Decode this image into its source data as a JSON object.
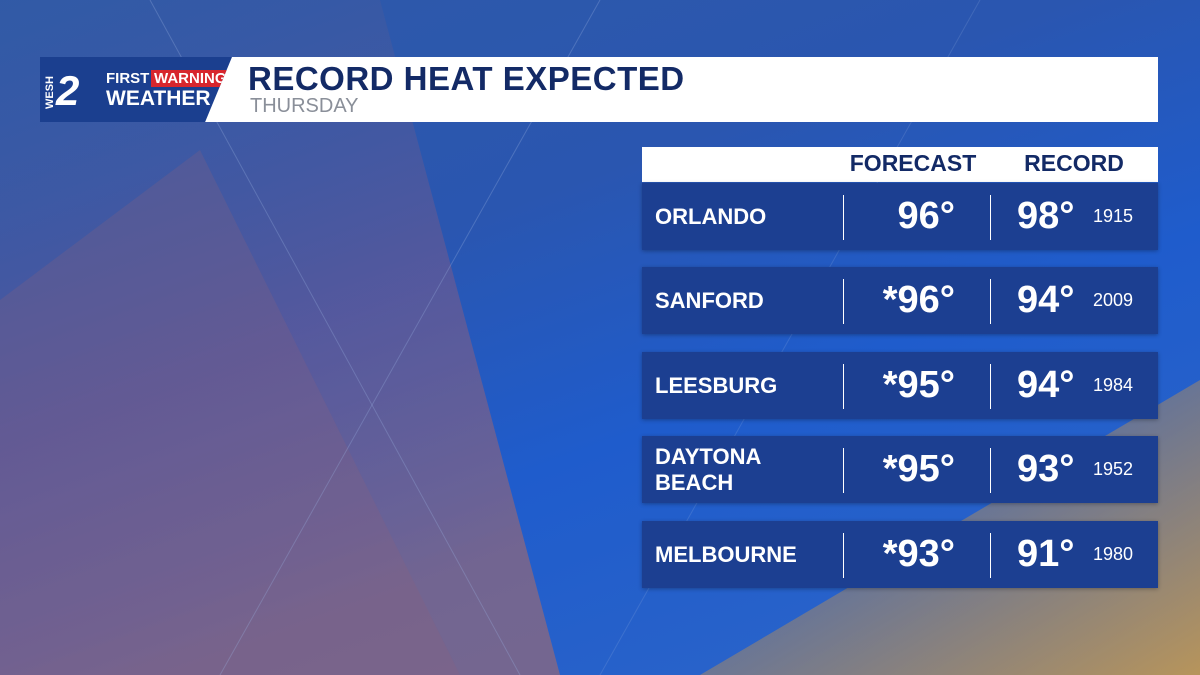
{
  "header": {
    "logo": {
      "station": "WESH",
      "channel": "2",
      "line1a": "FIRST",
      "line1b": "WARNING",
      "line2": "WEATHER"
    },
    "title": "RECORD HEAT EXPECTED",
    "subtitle": "THURSDAY"
  },
  "table": {
    "columns": [
      "FORECAST",
      "RECORD"
    ],
    "rows": [
      [
        "ORLANDO",
        "96°",
        "98°",
        "1915"
      ],
      [
        "SANFORD",
        "*96°",
        "94°",
        "2009"
      ],
      [
        "LEESBURG",
        "*95°",
        "94°",
        "1984"
      ],
      [
        "DAYTONA BEACH",
        "*95°",
        "93°",
        "1952"
      ],
      [
        "MELBOURNE",
        "*93°",
        "91°",
        "1980"
      ]
    ]
  }
}
